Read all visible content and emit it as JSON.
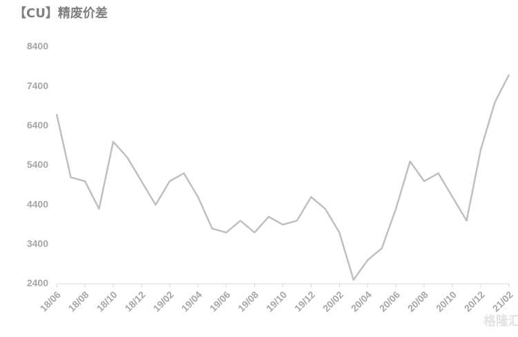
{
  "chart_data": {
    "type": "line",
    "title": "【CU】精废价差",
    "categories": [
      "18/06",
      null,
      "18/08",
      null,
      "18/10",
      null,
      "18/12",
      null,
      "19/02",
      null,
      "19/04",
      null,
      "19/06",
      null,
      "19/08",
      null,
      "19/10",
      null,
      "19/12",
      null,
      "20/02",
      null,
      "20/04",
      null,
      "20/06",
      null,
      "20/08",
      null,
      "20/10",
      null,
      "20/12",
      null,
      "21/02"
    ],
    "series": [
      {
        "color": "#bfbfbf",
        "values": [
          6700,
          5100,
          5000,
          4300,
          6000,
          5600,
          5000,
          4400,
          5000,
          5200,
          4600,
          3800,
          3700,
          4000,
          3700,
          4100,
          3900,
          4000,
          4600,
          4300,
          3700,
          2500,
          3000,
          3300,
          4300,
          5500,
          5000,
          5200,
          4600,
          4000,
          5800,
          7000,
          7700
        ]
      }
    ],
    "ylim": [
      2400,
      8400
    ],
    "yticks": [
      2400,
      3400,
      4400,
      5400,
      6400,
      7400,
      8400
    ],
    "grid": false,
    "watermark": "格隆汇"
  }
}
